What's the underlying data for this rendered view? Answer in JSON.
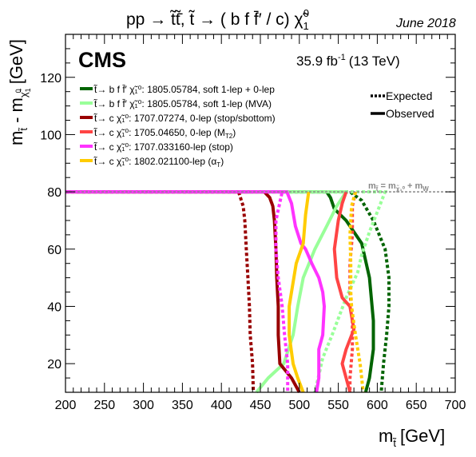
{
  "chart_data": {
    "type": "line",
    "title_left": "pp → t̃t̃̄,  t̃ → ( b f f̄′ / c) χ̃",
    "title_left_sub": "1",
    "title_left_sup": "0",
    "title_right": "June 2018",
    "experiment": "CMS",
    "luminosity": "35.9 fb",
    "luminosity_sup": "-1",
    "energy": "(13 TeV)",
    "xlabel": "m",
    "xlabel_sub": "t̃",
    "xlabel_unit": "[GeV]",
    "ylabel": "m",
    "ylabel_sub1": "t̃",
    "ylabel_mid": " - m",
    "ylabel_sub2": "χ̃",
    "ylabel_sub2_sup": "0",
    "ylabel_sub2_sub": "1",
    "ylabel_unit": "[GeV]",
    "xlim": [
      200,
      700
    ],
    "ylim": [
      10,
      135
    ],
    "xticks": [
      200,
      250,
      300,
      350,
      400,
      450,
      500,
      550,
      600,
      650,
      700
    ],
    "yticks": [
      20,
      40,
      60,
      80,
      100,
      120
    ],
    "grid": false,
    "style_legend": [
      {
        "label": "Expected",
        "style": "dotted"
      },
      {
        "label": "Observed",
        "style": "solid"
      }
    ],
    "mw_line": {
      "label_m": "m",
      "label_eq": " = m",
      "label_plus": " + m",
      "label_w": "W",
      "y": 80
    },
    "series": [
      {
        "name": "t̃→ b f f̄′ χ̃₁⁰: 1805.05784, soft 1-lep + 0-lep",
        "color": "#006400",
        "observed": [
          [
            200,
            80
          ],
          [
            535,
            80
          ],
          [
            540,
            78
          ],
          [
            545,
            74
          ],
          [
            560,
            70
          ],
          [
            580,
            62
          ],
          [
            590,
            50
          ],
          [
            595,
            35
          ],
          [
            595,
            25
          ],
          [
            590,
            15
          ],
          [
            585,
            10
          ]
        ],
        "expected": [
          [
            200,
            80
          ],
          [
            565,
            80
          ],
          [
            580,
            77
          ],
          [
            595,
            70
          ],
          [
            610,
            60
          ],
          [
            615,
            50
          ],
          [
            615,
            40
          ],
          [
            612,
            30
          ],
          [
            608,
            20
          ],
          [
            605,
            10
          ]
        ]
      },
      {
        "name": "t̃→ b f f̄′ χ̃₁⁰: 1805.05784, soft 1-lep (MVA)",
        "color": "#99ff99",
        "observed": [
          [
            200,
            80
          ],
          [
            560,
            80
          ],
          [
            548,
            75
          ],
          [
            535,
            68
          ],
          [
            520,
            60
          ],
          [
            505,
            50
          ],
          [
            498,
            40
          ],
          [
            492,
            30
          ],
          [
            480,
            20
          ],
          [
            460,
            15
          ],
          [
            445,
            10
          ]
        ],
        "expected": [
          [
            200,
            80
          ],
          [
            610,
            80
          ],
          [
            600,
            73
          ],
          [
            590,
            66
          ],
          [
            580,
            58
          ],
          [
            575,
            52
          ],
          [
            560,
            43
          ],
          [
            542,
            30
          ],
          [
            530,
            22
          ],
          [
            520,
            10
          ]
        ]
      },
      {
        "name": "t̃→ c χ̃₁⁰: 1707.07274, 0-lep (stop/sbottom)",
        "color": "#990000",
        "observed": [
          [
            200,
            80
          ],
          [
            455,
            80
          ],
          [
            462,
            78
          ],
          [
            466,
            75
          ],
          [
            468,
            70
          ],
          [
            470,
            60
          ],
          [
            471,
            50
          ],
          [
            473,
            40
          ],
          [
            473,
            30
          ],
          [
            475,
            20
          ],
          [
            490,
            15
          ],
          [
            500,
            10
          ]
        ],
        "expected": [
          [
            200,
            80
          ],
          [
            422,
            80
          ],
          [
            428,
            75
          ],
          [
            430,
            70
          ],
          [
            432,
            60
          ],
          [
            434,
            50
          ],
          [
            436,
            40
          ],
          [
            437,
            30
          ],
          [
            440,
            20
          ],
          [
            441,
            10
          ]
        ]
      },
      {
        "name": "t̃→ c χ̃₁⁰: 1705.04650, 0-lep (M",
        "name_sub": "T2",
        "name_tail": ")",
        "color": "#ff4444",
        "observed": [
          [
            560,
            80
          ],
          [
            555,
            76
          ],
          [
            550,
            70
          ],
          [
            545,
            60
          ],
          [
            548,
            50
          ],
          [
            555,
            43
          ],
          [
            565,
            40
          ],
          [
            570,
            32
          ],
          [
            560,
            25
          ],
          [
            555,
            20
          ],
          [
            560,
            15
          ],
          [
            565,
            10
          ]
        ],
        "expected": [
          [
            572,
            80
          ],
          [
            568,
            75
          ],
          [
            568,
            65
          ],
          [
            565,
            55
          ],
          [
            565,
            45
          ],
          [
            568,
            35
          ],
          [
            568,
            25
          ],
          [
            565,
            15
          ],
          [
            565,
            10
          ]
        ]
      },
      {
        "name": "t̃→ c χ̃₁⁰: 1707.033160-lep (stop)",
        "color": "#ff33ff",
        "observed": [
          [
            200,
            80
          ],
          [
            484,
            80
          ],
          [
            490,
            76
          ],
          [
            495,
            68
          ],
          [
            502,
            62
          ],
          [
            508,
            60
          ],
          [
            516,
            55
          ],
          [
            525,
            50
          ],
          [
            530,
            45
          ],
          [
            532,
            40
          ],
          [
            530,
            30
          ],
          [
            525,
            25
          ],
          [
            525,
            15
          ],
          [
            522,
            10
          ]
        ],
        "expected": [
          [
            200,
            80
          ],
          [
            478,
            80
          ],
          [
            474,
            75
          ],
          [
            470,
            70
          ],
          [
            470,
            60
          ],
          [
            473,
            50
          ],
          [
            478,
            40
          ],
          [
            481,
            30
          ],
          [
            485,
            20
          ],
          [
            485,
            10
          ]
        ]
      },
      {
        "name": "t̃→ c χ̃₁⁰: 1802.021100-lep (α",
        "name_sub": "T",
        "name_tail": ")",
        "color": "#ffcc00",
        "observed": [
          [
            512,
            80
          ],
          [
            508,
            72
          ],
          [
            505,
            62
          ],
          [
            496,
            55
          ],
          [
            490,
            45
          ],
          [
            487,
            40
          ],
          [
            487,
            30
          ],
          [
            492,
            20
          ],
          [
            498,
            15
          ],
          [
            505,
            10
          ]
        ],
        "expected": [
          [
            572,
            80
          ],
          [
            567,
            75
          ],
          [
            565,
            65
          ],
          [
            566,
            55
          ],
          [
            566,
            45
          ],
          [
            567,
            40
          ],
          [
            572,
            30
          ],
          [
            578,
            20
          ],
          [
            582,
            10
          ]
        ]
      }
    ]
  }
}
